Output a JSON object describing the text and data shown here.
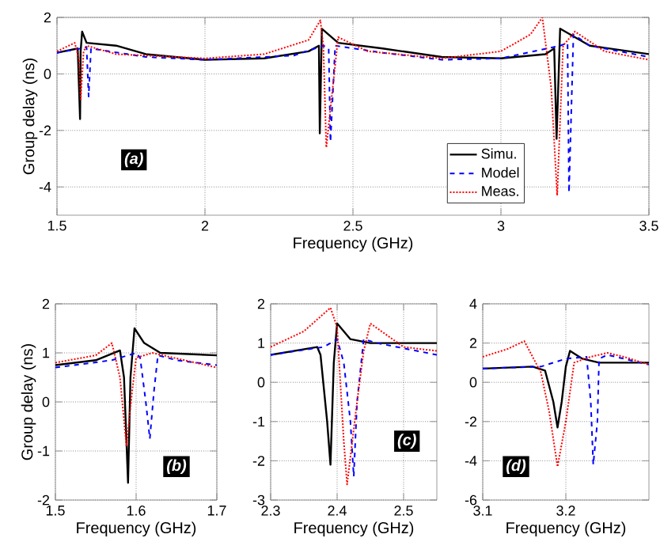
{
  "chart_data": [
    {
      "type": "line",
      "xlabel": "Frequency (GHz)",
      "ylabel": "Group delay (ns)",
      "xlim": [
        1.5,
        3.5
      ],
      "ylim": [
        -5,
        2
      ],
      "xticks": [
        1.5,
        2,
        2.5,
        3,
        3.5
      ],
      "yticks": [
        -4,
        -2,
        0,
        2
      ],
      "grid": true,
      "legend": "bottom right",
      "annotations": [
        "(a)"
      ],
      "series": [
        {
          "name": "Simu.",
          "color": "#000000",
          "line_style": "solid",
          "x": [
            1.5,
            1.57,
            1.578,
            1.58,
            1.585,
            1.6,
            1.7,
            1.8,
            2.0,
            2.2,
            2.35,
            2.385,
            2.388,
            2.395,
            2.45,
            2.6,
            2.8,
            3.0,
            3.15,
            3.18,
            3.188,
            3.2,
            3.3,
            3.5
          ],
          "values": [
            0.75,
            0.9,
            -1.6,
            0.8,
            1.5,
            1.1,
            1.0,
            0.7,
            0.5,
            0.55,
            0.8,
            1.0,
            -2.1,
            1.6,
            1.1,
            0.9,
            0.6,
            0.55,
            0.7,
            0.9,
            -2.3,
            1.6,
            1.0,
            0.7
          ]
        },
        {
          "name": "Model",
          "color": "#0000ff",
          "line_style": "dashed",
          "x": [
            1.5,
            1.58,
            1.6,
            1.607,
            1.615,
            1.8,
            2.0,
            2.3,
            2.4,
            2.418,
            2.424,
            2.44,
            2.6,
            2.8,
            3.0,
            3.2,
            3.225,
            3.23,
            3.245,
            3.3,
            3.5
          ],
          "values": [
            0.75,
            0.9,
            0.95,
            -0.8,
            0.9,
            0.6,
            0.5,
            0.65,
            1.0,
            0.9,
            -2.4,
            1.0,
            0.75,
            0.5,
            0.55,
            1.0,
            1.1,
            -4.2,
            1.4,
            1.0,
            0.6
          ]
        },
        {
          "name": "Meas.",
          "color": "#ff0000",
          "line_style": "dotted",
          "x": [
            1.5,
            1.56,
            1.575,
            1.58,
            1.59,
            1.6,
            1.7,
            2.0,
            2.2,
            2.35,
            2.39,
            2.4,
            2.41,
            2.45,
            2.55,
            2.8,
            3.0,
            3.1,
            3.14,
            3.17,
            3.19,
            3.21,
            3.25,
            3.35,
            3.5
          ],
          "values": [
            0.8,
            1.1,
            0.5,
            -0.9,
            0.8,
            1.0,
            0.7,
            0.55,
            0.7,
            1.2,
            1.9,
            1.0,
            -2.6,
            1.3,
            0.8,
            0.55,
            0.8,
            1.4,
            2.0,
            -0.5,
            -4.3,
            1.0,
            1.5,
            0.8,
            0.5
          ]
        }
      ]
    },
    {
      "type": "line",
      "xlabel": "Frequency (GHz)",
      "ylabel": "Group delay (ns)",
      "xlim": [
        1.5,
        1.7
      ],
      "ylim": [
        -2,
        2
      ],
      "xticks": [
        1.5,
        1.6,
        1.7
      ],
      "yticks": [
        -2,
        -1,
        0,
        1,
        2
      ],
      "grid": true,
      "annotations": [
        "(b)"
      ],
      "series": [
        {
          "color": "#000000",
          "line_style": "solid",
          "x": [
            1.5,
            1.55,
            1.58,
            1.585,
            1.59,
            1.593,
            1.598,
            1.61,
            1.63,
            1.7
          ],
          "values": [
            0.75,
            0.85,
            1.05,
            0.5,
            -1.65,
            0.5,
            1.5,
            1.2,
            1.0,
            0.95
          ]
        },
        {
          "color": "#0000ff",
          "line_style": "dashed",
          "x": [
            1.5,
            1.57,
            1.6,
            1.605,
            1.612,
            1.617,
            1.622,
            1.627,
            1.65,
            1.7
          ],
          "values": [
            0.7,
            0.85,
            1.0,
            0.9,
            0.0,
            -0.75,
            0.2,
            0.95,
            0.85,
            0.75
          ]
        },
        {
          "color": "#ff0000",
          "line_style": "dotted",
          "x": [
            1.5,
            1.55,
            1.57,
            1.58,
            1.588,
            1.595,
            1.6,
            1.62,
            1.7
          ],
          "values": [
            0.8,
            0.95,
            1.2,
            0.5,
            -0.9,
            0.2,
            0.9,
            1.0,
            0.7
          ]
        }
      ]
    },
    {
      "type": "line",
      "xlabel": "Frequency (GHz)",
      "xlim": [
        2.3,
        2.55
      ],
      "ylim": [
        -3,
        2
      ],
      "xticks": [
        2.3,
        2.4,
        2.5
      ],
      "yticks": [
        -3,
        -2,
        -1,
        0,
        1,
        2
      ],
      "grid": true,
      "annotations": [
        "(c)"
      ],
      "series": [
        {
          "color": "#000000",
          "line_style": "solid",
          "x": [
            2.3,
            2.37,
            2.375,
            2.385,
            2.39,
            2.395,
            2.4,
            2.42,
            2.45,
            2.55
          ],
          "values": [
            0.7,
            0.9,
            0.7,
            -1.0,
            -2.1,
            0.5,
            1.5,
            1.1,
            1.0,
            1.0
          ]
        },
        {
          "color": "#0000ff",
          "line_style": "dashed",
          "x": [
            2.3,
            2.38,
            2.4,
            2.41,
            2.42,
            2.425,
            2.43,
            2.44,
            2.46,
            2.55
          ],
          "values": [
            0.7,
            0.9,
            1.1,
            0.5,
            -1.0,
            -2.4,
            -0.5,
            1.1,
            1.0,
            0.7
          ]
        },
        {
          "color": "#ff0000",
          "line_style": "dotted",
          "x": [
            2.3,
            2.35,
            2.39,
            2.4,
            2.41,
            2.415,
            2.43,
            2.44,
            2.45,
            2.5,
            2.55
          ],
          "values": [
            0.9,
            1.3,
            1.9,
            1.4,
            -1.5,
            -2.6,
            -0.5,
            0.8,
            1.5,
            0.9,
            0.8
          ]
        }
      ]
    },
    {
      "type": "line",
      "xlabel": "Frequency (GHz)",
      "xlim": [
        3.1,
        3.3
      ],
      "ylim": [
        -6,
        4
      ],
      "xticks": [
        3.1,
        3.2
      ],
      "yticks": [
        -6,
        -4,
        -2,
        0,
        2,
        4
      ],
      "grid": true,
      "annotations": [
        "(d)"
      ],
      "series": [
        {
          "color": "#000000",
          "line_style": "solid",
          "x": [
            3.1,
            3.16,
            3.175,
            3.185,
            3.19,
            3.195,
            3.2,
            3.205,
            3.22,
            3.24,
            3.3
          ],
          "values": [
            0.7,
            0.8,
            0.6,
            -1.0,
            -2.3,
            -1.0,
            0.8,
            1.6,
            1.2,
            1.0,
            1.0
          ]
        },
        {
          "color": "#0000ff",
          "line_style": "dashed",
          "x": [
            3.1,
            3.17,
            3.2,
            3.225,
            3.23,
            3.233,
            3.238,
            3.24,
            3.25,
            3.27,
            3.3
          ],
          "values": [
            0.7,
            0.8,
            1.2,
            1.3,
            -1.0,
            -4.2,
            -2.0,
            1.2,
            1.4,
            1.2,
            0.9
          ]
        },
        {
          "color": "#ff0000",
          "line_style": "dotted",
          "x": [
            3.1,
            3.13,
            3.15,
            3.17,
            3.18,
            3.19,
            3.2,
            3.21,
            3.23,
            3.25,
            3.27,
            3.3
          ],
          "values": [
            1.3,
            1.7,
            2.1,
            0.5,
            -1.5,
            -4.3,
            -2.0,
            1.0,
            1.3,
            1.5,
            1.3,
            0.9
          ]
        }
      ]
    }
  ]
}
